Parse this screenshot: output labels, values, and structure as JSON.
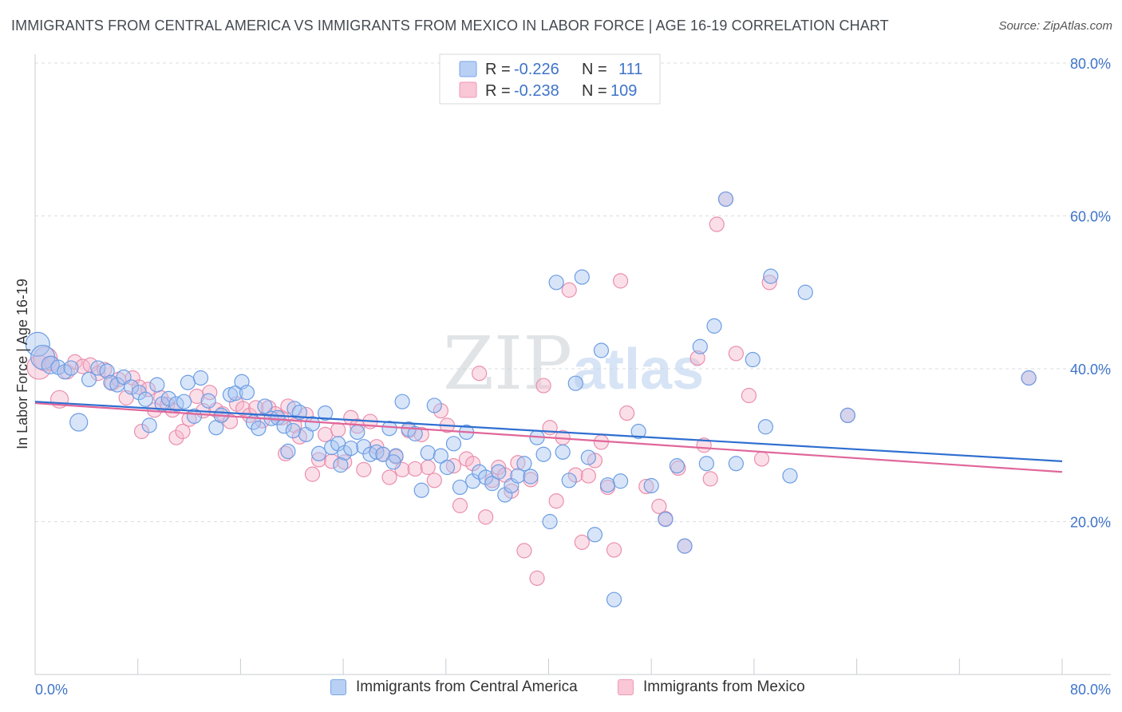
{
  "title": "IMMIGRANTS FROM CENTRAL AMERICA VS IMMIGRANTS FROM MEXICO IN LABOR FORCE | AGE 16-19 CORRELATION CHART",
  "source": "Source: ZipAtlas.com",
  "watermark": {
    "zip": "ZIP",
    "atlas": "atlas"
  },
  "colors": {
    "blue_fill": "#a9c6f2",
    "blue_stroke": "#6c9de3",
    "blue_line": "#2f6fd0",
    "pink_fill": "#f6b8cb",
    "pink_stroke": "#ea8fae",
    "pink_line": "#e0679a",
    "grid": "#d9dde3",
    "axis_text": "#3f74c9"
  },
  "legend_top": {
    "rows": [
      {
        "r_label": "R = ",
        "r_value": "-0.226",
        "n_label": "N = ",
        "n_value": "111",
        "series": "blue"
      },
      {
        "r_label": "R = ",
        "r_value": "-0.238",
        "n_label": "N = ",
        "n_value": "109",
        "series": "pink"
      }
    ]
  },
  "legend_bottom": [
    {
      "label": "Immigrants from Central America",
      "series": "blue"
    },
    {
      "label": "Immigrants from Mexico",
      "series": "pink"
    }
  ],
  "chart_data": {
    "type": "scatter",
    "title": "IMMIGRANTS FROM CENTRAL AMERICA VS IMMIGRANTS FROM MEXICO IN LABOR FORCE | AGE 16-19 CORRELATION CHART",
    "xlabel": "",
    "ylabel": "In Labor Force | Age 16-19",
    "xlim": [
      0,
      80
    ],
    "ylim": [
      0,
      80
    ],
    "x_tick_labels": [
      "0.0%",
      "80.0%"
    ],
    "y_tick_values": [
      20,
      40,
      60,
      80
    ],
    "y_tick_labels": [
      "20.0%",
      "40.0%",
      "60.0%",
      "80.0%"
    ],
    "grid": "horizontal dashed",
    "legend_position": "top-center",
    "series": [
      {
        "name": "Immigrants from Central America",
        "color": "blue",
        "R": -0.226,
        "N": 111,
        "trend": {
          "x": [
            0,
            80
          ],
          "y": [
            35.7,
            27.9
          ]
        },
        "points": [
          {
            "x": 0.2,
            "y": 43.2,
            "s": "L"
          },
          {
            "x": 0.6,
            "y": 41.5,
            "s": "L"
          },
          {
            "x": 1.2,
            "y": 40.5,
            "s": "M"
          },
          {
            "x": 1.8,
            "y": 40.2
          },
          {
            "x": 2.3,
            "y": 39.6
          },
          {
            "x": 2.8,
            "y": 40.1
          },
          {
            "x": 3.4,
            "y": 33.0,
            "s": "M"
          },
          {
            "x": 4.2,
            "y": 38.6
          },
          {
            "x": 4.9,
            "y": 40.1
          },
          {
            "x": 5.6,
            "y": 39.7
          },
          {
            "x": 5.9,
            "y": 38.2
          },
          {
            "x": 6.4,
            "y": 37.9
          },
          {
            "x": 6.9,
            "y": 38.9
          },
          {
            "x": 7.5,
            "y": 37.6
          },
          {
            "x": 8.1,
            "y": 36.9
          },
          {
            "x": 8.6,
            "y": 36.0
          },
          {
            "x": 8.9,
            "y": 32.6
          },
          {
            "x": 9.5,
            "y": 37.9
          },
          {
            "x": 9.9,
            "y": 35.4
          },
          {
            "x": 10.4,
            "y": 36.1
          },
          {
            "x": 11.0,
            "y": 35.4
          },
          {
            "x": 11.6,
            "y": 35.7
          },
          {
            "x": 11.9,
            "y": 38.2
          },
          {
            "x": 12.4,
            "y": 33.8
          },
          {
            "x": 12.9,
            "y": 38.8
          },
          {
            "x": 13.5,
            "y": 35.8
          },
          {
            "x": 14.1,
            "y": 32.3
          },
          {
            "x": 14.5,
            "y": 33.9
          },
          {
            "x": 15.2,
            "y": 36.6
          },
          {
            "x": 15.6,
            "y": 36.8
          },
          {
            "x": 16.1,
            "y": 38.3
          },
          {
            "x": 16.5,
            "y": 36.9
          },
          {
            "x": 17.0,
            "y": 33.0
          },
          {
            "x": 17.4,
            "y": 32.2
          },
          {
            "x": 17.9,
            "y": 35.1
          },
          {
            "x": 18.4,
            "y": 33.5
          },
          {
            "x": 18.9,
            "y": 33.6
          },
          {
            "x": 19.4,
            "y": 32.5
          },
          {
            "x": 19.7,
            "y": 29.2
          },
          {
            "x": 20.2,
            "y": 34.8
          },
          {
            "x": 20.6,
            "y": 34.3
          },
          {
            "x": 21.1,
            "y": 31.4
          },
          {
            "x": 21.6,
            "y": 32.8
          },
          {
            "x": 22.1,
            "y": 28.9
          },
          {
            "x": 22.6,
            "y": 34.2
          },
          {
            "x": 23.1,
            "y": 29.7
          },
          {
            "x": 23.6,
            "y": 30.2
          },
          {
            "x": 24.1,
            "y": 29.0
          },
          {
            "x": 24.6,
            "y": 29.6
          },
          {
            "x": 25.1,
            "y": 31.7
          },
          {
            "x": 25.6,
            "y": 29.8
          },
          {
            "x": 26.1,
            "y": 28.8
          },
          {
            "x": 26.6,
            "y": 29.1
          },
          {
            "x": 27.1,
            "y": 28.8
          },
          {
            "x": 27.6,
            "y": 32.2
          },
          {
            "x": 28.1,
            "y": 28.6
          },
          {
            "x": 28.6,
            "y": 35.7
          },
          {
            "x": 29.1,
            "y": 32.1
          },
          {
            "x": 29.6,
            "y": 31.5
          },
          {
            "x": 30.1,
            "y": 24.1
          },
          {
            "x": 30.6,
            "y": 29.0
          },
          {
            "x": 31.1,
            "y": 35.2
          },
          {
            "x": 31.6,
            "y": 28.6
          },
          {
            "x": 32.1,
            "y": 27.1
          },
          {
            "x": 32.6,
            "y": 30.2
          },
          {
            "x": 33.1,
            "y": 24.5
          },
          {
            "x": 33.6,
            "y": 31.7
          },
          {
            "x": 34.1,
            "y": 25.3
          },
          {
            "x": 34.6,
            "y": 26.5
          },
          {
            "x": 35.1,
            "y": 25.8
          },
          {
            "x": 35.6,
            "y": 25.0
          },
          {
            "x": 36.1,
            "y": 26.5
          },
          {
            "x": 36.6,
            "y": 23.5
          },
          {
            "x": 37.1,
            "y": 24.7
          },
          {
            "x": 37.6,
            "y": 26.0
          },
          {
            "x": 38.1,
            "y": 27.6
          },
          {
            "x": 38.6,
            "y": 25.9
          },
          {
            "x": 39.1,
            "y": 31.0
          },
          {
            "x": 39.6,
            "y": 28.8
          },
          {
            "x": 40.1,
            "y": 20.0
          },
          {
            "x": 40.6,
            "y": 51.3
          },
          {
            "x": 41.1,
            "y": 29.1
          },
          {
            "x": 41.6,
            "y": 25.4
          },
          {
            "x": 42.1,
            "y": 38.1
          },
          {
            "x": 42.6,
            "y": 52.0
          },
          {
            "x": 43.1,
            "y": 28.4
          },
          {
            "x": 43.6,
            "y": 18.3
          },
          {
            "x": 44.1,
            "y": 42.4
          },
          {
            "x": 44.6,
            "y": 24.8
          },
          {
            "x": 45.1,
            "y": 9.8
          },
          {
            "x": 45.6,
            "y": 25.3
          },
          {
            "x": 47.0,
            "y": 31.8
          },
          {
            "x": 48.0,
            "y": 24.7
          },
          {
            "x": 49.1,
            "y": 20.3
          },
          {
            "x": 50.0,
            "y": 27.3
          },
          {
            "x": 50.6,
            "y": 16.8
          },
          {
            "x": 51.8,
            "y": 42.9
          },
          {
            "x": 52.3,
            "y": 27.6
          },
          {
            "x": 52.9,
            "y": 45.6
          },
          {
            "x": 53.8,
            "y": 62.2
          },
          {
            "x": 54.6,
            "y": 27.6
          },
          {
            "x": 55.9,
            "y": 41.2
          },
          {
            "x": 56.9,
            "y": 32.4
          },
          {
            "x": 57.3,
            "y": 52.1
          },
          {
            "x": 58.8,
            "y": 26.0
          },
          {
            "x": 60.0,
            "y": 50.0
          },
          {
            "x": 63.3,
            "y": 33.9
          },
          {
            "x": 77.4,
            "y": 38.8
          },
          {
            "x": 20.1,
            "y": 31.9
          },
          {
            "x": 23.8,
            "y": 27.4
          },
          {
            "x": 27.9,
            "y": 27.8
          }
        ]
      },
      {
        "name": "Immigrants from Mexico",
        "color": "pink",
        "R": -0.238,
        "N": 109,
        "trend": {
          "x": [
            0,
            80
          ],
          "y": [
            35.5,
            26.5
          ]
        },
        "points": [
          {
            "x": 0.3,
            "y": 40.2,
            "s": "L"
          },
          {
            "x": 0.8,
            "y": 41.3,
            "s": "L"
          },
          {
            "x": 1.3,
            "y": 40.7
          },
          {
            "x": 1.9,
            "y": 36.0,
            "s": "M"
          },
          {
            "x": 2.5,
            "y": 39.6
          },
          {
            "x": 3.1,
            "y": 40.9
          },
          {
            "x": 3.7,
            "y": 40.3
          },
          {
            "x": 4.3,
            "y": 40.5
          },
          {
            "x": 4.9,
            "y": 39.4
          },
          {
            "x": 5.4,
            "y": 39.9
          },
          {
            "x": 6.0,
            "y": 38.1
          },
          {
            "x": 6.5,
            "y": 38.6
          },
          {
            "x": 7.1,
            "y": 36.2
          },
          {
            "x": 7.6,
            "y": 38.8
          },
          {
            "x": 8.1,
            "y": 37.6
          },
          {
            "x": 8.3,
            "y": 31.8
          },
          {
            "x": 8.8,
            "y": 37.3
          },
          {
            "x": 9.3,
            "y": 34.6
          },
          {
            "x": 9.8,
            "y": 36.2
          },
          {
            "x": 10.3,
            "y": 35.3
          },
          {
            "x": 10.7,
            "y": 34.6
          },
          {
            "x": 11.0,
            "y": 31.0
          },
          {
            "x": 11.5,
            "y": 31.8
          },
          {
            "x": 12.0,
            "y": 33.4
          },
          {
            "x": 12.6,
            "y": 36.4
          },
          {
            "x": 13.1,
            "y": 34.5
          },
          {
            "x": 13.6,
            "y": 36.9
          },
          {
            "x": 14.1,
            "y": 34.6
          },
          {
            "x": 14.6,
            "y": 34.1
          },
          {
            "x": 15.2,
            "y": 33.1
          },
          {
            "x": 15.7,
            "y": 35.4
          },
          {
            "x": 16.2,
            "y": 34.8
          },
          {
            "x": 16.7,
            "y": 33.9
          },
          {
            "x": 17.2,
            "y": 34.9
          },
          {
            "x": 17.7,
            "y": 33.2
          },
          {
            "x": 18.2,
            "y": 34.9
          },
          {
            "x": 18.7,
            "y": 34.1
          },
          {
            "x": 19.2,
            "y": 33.6
          },
          {
            "x": 19.7,
            "y": 35.1
          },
          {
            "x": 20.2,
            "y": 32.6
          },
          {
            "x": 20.6,
            "y": 31.1
          },
          {
            "x": 21.1,
            "y": 34.0
          },
          {
            "x": 21.6,
            "y": 26.2
          },
          {
            "x": 22.1,
            "y": 28.1
          },
          {
            "x": 22.6,
            "y": 31.4
          },
          {
            "x": 23.1,
            "y": 27.9
          },
          {
            "x": 23.6,
            "y": 32.0
          },
          {
            "x": 24.1,
            "y": 27.8
          },
          {
            "x": 24.6,
            "y": 33.6
          },
          {
            "x": 25.1,
            "y": 32.5
          },
          {
            "x": 25.6,
            "y": 26.8
          },
          {
            "x": 26.1,
            "y": 33.1
          },
          {
            "x": 26.6,
            "y": 29.8
          },
          {
            "x": 27.1,
            "y": 28.8
          },
          {
            "x": 27.6,
            "y": 25.8
          },
          {
            "x": 28.1,
            "y": 28.5
          },
          {
            "x": 28.6,
            "y": 26.8
          },
          {
            "x": 29.1,
            "y": 31.9
          },
          {
            "x": 29.6,
            "y": 26.9
          },
          {
            "x": 30.1,
            "y": 31.4
          },
          {
            "x": 30.6,
            "y": 27.1
          },
          {
            "x": 31.1,
            "y": 25.4
          },
          {
            "x": 31.6,
            "y": 34.5
          },
          {
            "x": 32.1,
            "y": 32.6
          },
          {
            "x": 32.6,
            "y": 27.3
          },
          {
            "x": 33.1,
            "y": 22.1
          },
          {
            "x": 33.6,
            "y": 28.2
          },
          {
            "x": 34.1,
            "y": 27.6
          },
          {
            "x": 34.6,
            "y": 39.4
          },
          {
            "x": 35.1,
            "y": 20.6
          },
          {
            "x": 35.6,
            "y": 25.4
          },
          {
            "x": 36.1,
            "y": 27.1
          },
          {
            "x": 36.6,
            "y": 26.1
          },
          {
            "x": 37.1,
            "y": 24.0
          },
          {
            "x": 37.6,
            "y": 27.7
          },
          {
            "x": 38.1,
            "y": 16.2
          },
          {
            "x": 38.6,
            "y": 25.5
          },
          {
            "x": 39.1,
            "y": 12.6
          },
          {
            "x": 39.6,
            "y": 37.8
          },
          {
            "x": 40.1,
            "y": 32.3
          },
          {
            "x": 40.6,
            "y": 22.7
          },
          {
            "x": 41.1,
            "y": 31.0
          },
          {
            "x": 41.6,
            "y": 50.3
          },
          {
            "x": 42.1,
            "y": 26.1
          },
          {
            "x": 42.6,
            "y": 17.3
          },
          {
            "x": 43.1,
            "y": 26.0
          },
          {
            "x": 43.6,
            "y": 28.0
          },
          {
            "x": 44.1,
            "y": 30.4
          },
          {
            "x": 44.6,
            "y": 24.5
          },
          {
            "x": 45.1,
            "y": 16.3
          },
          {
            "x": 45.6,
            "y": 51.5
          },
          {
            "x": 46.1,
            "y": 34.2
          },
          {
            "x": 47.6,
            "y": 24.6
          },
          {
            "x": 48.6,
            "y": 22.0
          },
          {
            "x": 49.1,
            "y": 20.4
          },
          {
            "x": 50.1,
            "y": 27.0
          },
          {
            "x": 50.6,
            "y": 16.8
          },
          {
            "x": 51.6,
            "y": 41.4
          },
          {
            "x": 52.1,
            "y": 30.0
          },
          {
            "x": 52.6,
            "y": 25.6
          },
          {
            "x": 53.1,
            "y": 58.9
          },
          {
            "x": 53.8,
            "y": 62.2
          },
          {
            "x": 54.6,
            "y": 42.0
          },
          {
            "x": 55.6,
            "y": 36.5
          },
          {
            "x": 56.6,
            "y": 28.2
          },
          {
            "x": 57.2,
            "y": 51.3
          },
          {
            "x": 63.3,
            "y": 33.9
          },
          {
            "x": 77.4,
            "y": 38.8
          },
          {
            "x": 19.5,
            "y": 28.9
          }
        ]
      }
    ]
  }
}
